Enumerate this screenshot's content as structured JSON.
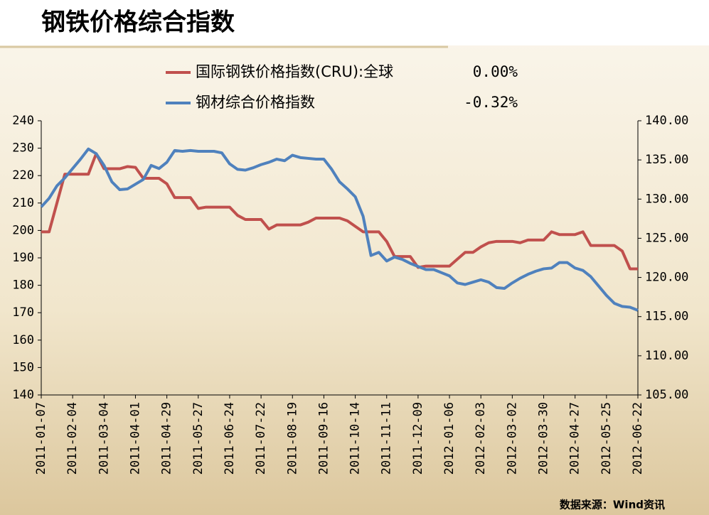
{
  "chart_data": {
    "type": "line",
    "title": "钢铁价格综合指数",
    "source": "数据来源：Wind资讯",
    "categories": [
      "2011-01-07",
      null,
      null,
      null,
      "2011-02-04",
      null,
      null,
      null,
      "2011-03-04",
      null,
      null,
      null,
      "2011-04-01",
      null,
      null,
      null,
      "2011-04-29",
      null,
      null,
      null,
      "2011-05-27",
      null,
      null,
      null,
      "2011-06-24",
      null,
      null,
      null,
      "2011-07-22",
      null,
      null,
      null,
      "2011-08-19",
      null,
      null,
      null,
      "2011-09-16",
      null,
      null,
      null,
      "2011-10-14",
      null,
      null,
      null,
      "2011-11-11",
      null,
      null,
      null,
      "2011-12-09",
      null,
      null,
      null,
      "2012-01-06",
      null,
      null,
      null,
      "2012-02-03",
      null,
      null,
      null,
      "2012-03-02",
      null,
      null,
      null,
      "2012-03-30",
      null,
      null,
      null,
      "2012-04-27",
      null,
      null,
      null,
      "2012-05-25",
      null,
      null,
      null,
      "2012-06-22"
    ],
    "series": [
      {
        "name": "国际钢铁价格指数(CRU):全球",
        "legend_value": "0.00%",
        "color": "#c0504d",
        "axis": "y",
        "values": [
          199.5,
          199.5,
          210,
          220.5,
          220.5,
          220.5,
          220.5,
          228,
          222.5,
          222.5,
          222.5,
          223.3,
          223,
          219,
          219,
          219,
          217,
          212,
          212,
          212,
          208,
          208.5,
          208.5,
          208.5,
          208.5,
          205.5,
          204,
          204,
          204,
          200.5,
          202,
          202,
          202,
          202,
          203,
          204.5,
          204.5,
          204.5,
          204.5,
          203.5,
          201.5,
          199.5,
          199.5,
          199.5,
          196,
          190.5,
          190.5,
          190.5,
          186.5,
          187,
          187,
          187,
          187,
          189.5,
          192,
          192,
          194,
          195.5,
          196,
          196,
          196,
          195.5,
          196.5,
          196.5,
          196.5,
          199.5,
          198.5,
          198.5,
          198.5,
          199.5,
          194.5,
          194.5,
          194.5,
          194.5,
          192.5,
          186,
          186
        ]
      },
      {
        "name": "钢材综合价格指数",
        "legend_value": "-0.32%",
        "color": "#4f81bd",
        "axis": "y2",
        "values": [
          129.0,
          130.1,
          131.7,
          132.7,
          133.9,
          135.1,
          136.4,
          135.8,
          134.3,
          132.2,
          131.2,
          131.3,
          131.9,
          132.5,
          134.3,
          133.9,
          134.7,
          136.2,
          136.1,
          136.2,
          136.1,
          136.1,
          136.1,
          135.9,
          134.5,
          133.8,
          133.7,
          134.0,
          134.4,
          134.7,
          135.1,
          134.9,
          135.6,
          135.3,
          135.2,
          135.1,
          135.1,
          133.8,
          132.2,
          131.3,
          130.3,
          127.8,
          122.8,
          123.2,
          122.1,
          122.6,
          122.3,
          121.8,
          121.4,
          121.0,
          121.0,
          120.6,
          120.2,
          119.3,
          119.1,
          119.4,
          119.7,
          119.4,
          118.7,
          118.6,
          119.3,
          119.9,
          120.4,
          120.8,
          121.1,
          121.2,
          121.9,
          121.9,
          121.2,
          120.9,
          120.1,
          118.9,
          117.7,
          116.7,
          116.3,
          116.2,
          115.8
        ]
      }
    ],
    "ylim": [
      140,
      240
    ],
    "yticks": [
      140,
      150,
      160,
      170,
      180,
      190,
      200,
      210,
      220,
      230,
      240
    ],
    "y2lim": [
      105,
      140
    ],
    "y2ticks": [
      {
        "value": 105,
        "label": "105.00"
      },
      {
        "value": 110,
        "label": "110.00"
      },
      {
        "value": 115,
        "label": "115.00"
      },
      {
        "value": 120,
        "label": "120.00"
      },
      {
        "value": 125,
        "label": "125.00"
      },
      {
        "value": 130,
        "label": "130.00"
      },
      {
        "value": 135,
        "label": "135.00"
      },
      {
        "value": 140,
        "label": "140.00"
      }
    ],
    "grid": false
  }
}
